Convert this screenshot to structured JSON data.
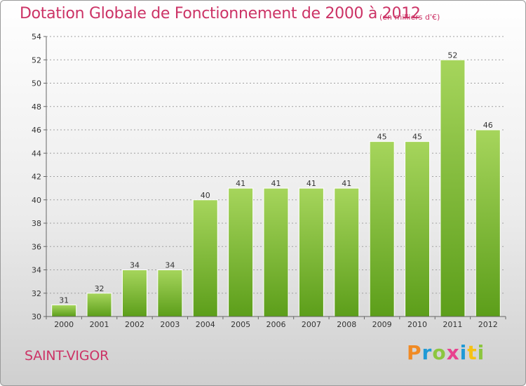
{
  "title": "Dotation Globale de Fonctionnement de 2000 à 2012",
  "unit_note": "(en milliers d'€)",
  "commune": "SAINT-VIGOR",
  "logo_text": "Proxiti",
  "colors": {
    "title": "#cc3366",
    "bar_light": "#a6d55c",
    "bar_dark": "#5c9e1a",
    "grid": "#9a9a9a"
  },
  "chart_data": {
    "type": "bar",
    "title": "Dotation Globale de Fonctionnement de 2000 à 2012",
    "categories": [
      "2000",
      "2001",
      "2002",
      "2003",
      "2004",
      "2005",
      "2006",
      "2007",
      "2008",
      "2009",
      "2010",
      "2011",
      "2012"
    ],
    "values": [
      31,
      32,
      34,
      34,
      40,
      41,
      41,
      41,
      41,
      45,
      45,
      52,
      46
    ],
    "ylim": [
      30,
      54
    ],
    "yticks": [
      30,
      32,
      34,
      36,
      38,
      40,
      42,
      44,
      46,
      48,
      50,
      52,
      54
    ],
    "grid": true,
    "xlabel": "",
    "ylabel": ""
  }
}
